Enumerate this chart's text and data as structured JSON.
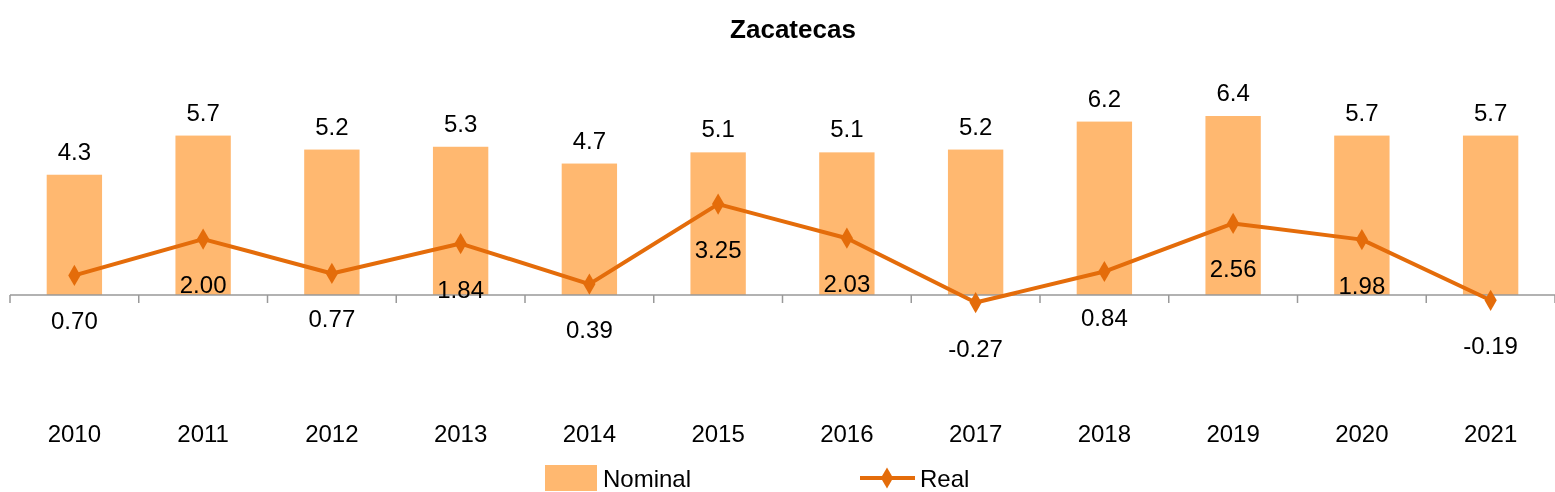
{
  "chart_data": {
    "type": "bar",
    "title": "Zacatecas",
    "categories": [
      "2010",
      "2011",
      "2012",
      "2013",
      "2014",
      "2015",
      "2016",
      "2017",
      "2018",
      "2019",
      "2020",
      "2021"
    ],
    "series": [
      {
        "name": "Nominal",
        "color": "#ffb870",
        "values": [
          4.3,
          5.7,
          5.2,
          5.3,
          4.7,
          5.1,
          5.1,
          5.2,
          6.2,
          6.4,
          5.7,
          5.7
        ],
        "value_labels": [
          "4.3",
          "5.7",
          "5.2",
          "5.3",
          "4.7",
          "5.1",
          "5.1",
          "5.2",
          "6.2",
          "6.4",
          "5.7",
          "5.7"
        ]
      },
      {
        "name": "Real",
        "type": "line",
        "color": "#e46c0a",
        "marker": "diamond",
        "values": [
          0.7,
          2.0,
          0.77,
          1.84,
          0.39,
          3.25,
          2.03,
          -0.27,
          0.84,
          2.56,
          1.98,
          -0.19
        ],
        "value_labels": [
          "0.70",
          "2.00",
          "0.77",
          "1.84",
          "0.39",
          "3.25",
          "2.03",
          "-0.27",
          "0.84",
          "2.56",
          "1.98",
          "-0.19"
        ]
      }
    ],
    "legend": "bottom"
  }
}
